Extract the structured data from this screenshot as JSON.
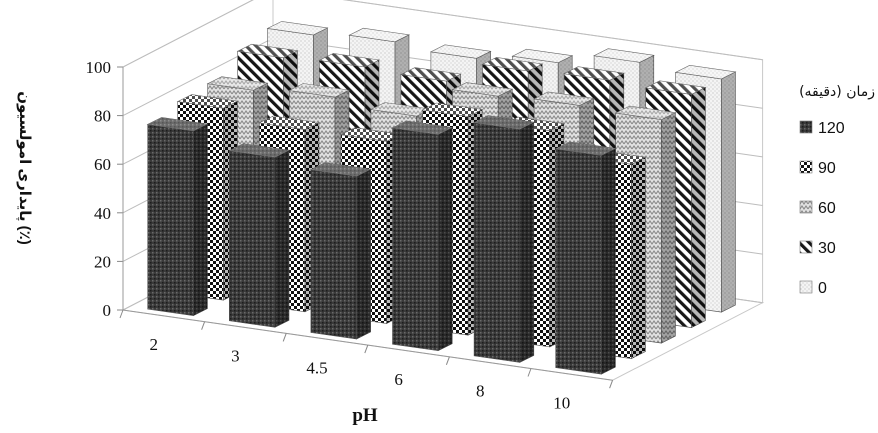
{
  "chart_data": {
    "type": "bar",
    "subtype": "3d-column",
    "categories": [
      "2",
      "3",
      "4.5",
      "6",
      "8",
      "10"
    ],
    "series": [
      {
        "name": "120",
        "values": [
          76,
          70,
          67,
          89,
          96,
          90
        ],
        "pattern": "dark-dots"
      },
      {
        "name": "90",
        "values": [
          79,
          75,
          75,
          90,
          89,
          80
        ],
        "pattern": "checker"
      },
      {
        "name": "60",
        "values": [
          80,
          82,
          79,
          92,
          93,
          92
        ],
        "pattern": "zigzag"
      },
      {
        "name": "30",
        "values": [
          87,
          88,
          87,
          96,
          97,
          96
        ],
        "pattern": "diagonal"
      },
      {
        "name": "0",
        "values": [
          90,
          92,
          90,
          93,
          98,
          96
        ],
        "pattern": "light-dots"
      }
    ],
    "xlabel": "pH",
    "ylabel": "پایداری امولسیون (٪)",
    "ylim": [
      0,
      100
    ],
    "yticks": [
      "0",
      "20",
      "40",
      "60",
      "80",
      "100"
    ],
    "grid": true,
    "legend": {
      "title": "زمان (دقیقه)",
      "position": "right"
    }
  }
}
